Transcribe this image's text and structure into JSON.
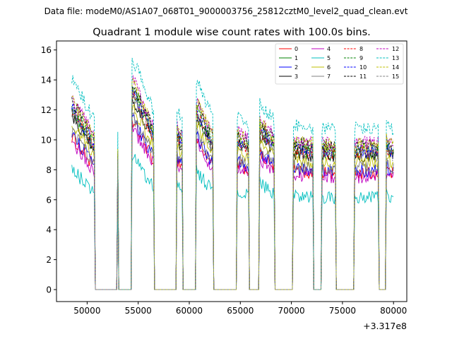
{
  "chart_data": {
    "type": "line",
    "suptitle": "Data file: modeM0/AS1A07_068T01_9000003756_25812cztM0_level2_quad_clean.evt",
    "title": "Quadrant 1 module wise count rates with 100.0s bins.",
    "xlabel": "",
    "ylabel": "",
    "x_offset_label": "+3.317e8",
    "xlim": [
      47000,
      81300
    ],
    "ylim": [
      -0.8,
      16.6
    ],
    "x_ticks": [
      50000,
      55000,
      60000,
      65000,
      70000,
      75000,
      80000
    ],
    "x_tick_labels": [
      "50000",
      "55000",
      "60000",
      "65000",
      "70000",
      "75000",
      "80000"
    ],
    "y_ticks": [
      0,
      2,
      4,
      6,
      8,
      10,
      12,
      14,
      16
    ],
    "y_tick_labels": [
      "0",
      "2",
      "4",
      "6",
      "8",
      "10",
      "12",
      "14",
      "16"
    ],
    "bin_size_s": 100,
    "segments": [
      {
        "start": 48500,
        "end": 50700,
        "level": 8.5,
        "decay": 0.25
      },
      {
        "start": 53000,
        "end": 53000,
        "level": 8.0,
        "decay": 0
      },
      {
        "start": 54400,
        "end": 56500,
        "level": 9.0,
        "decay": 0.3
      },
      {
        "start": 58800,
        "end": 59300,
        "level": 8.6,
        "decay": 0.05
      },
      {
        "start": 60700,
        "end": 62300,
        "level": 8.6,
        "decay": 0.22
      },
      {
        "start": 64700,
        "end": 65800,
        "level": 8.3,
        "decay": 0.05
      },
      {
        "start": 66900,
        "end": 68300,
        "level": 8.5,
        "decay": 0.1
      },
      {
        "start": 70200,
        "end": 72100,
        "level": 8.1,
        "decay": 0.02
      },
      {
        "start": 73000,
        "end": 74300,
        "level": 8.0,
        "decay": 0.02
      },
      {
        "start": 76200,
        "end": 78500,
        "level": 8.1,
        "decay": 0.0
      },
      {
        "start": 79300,
        "end": 80000,
        "level": 8.0,
        "decay": 0.05
      }
    ],
    "series": [
      {
        "name": "0",
        "color": "#ff0000",
        "dash": "solid",
        "scale": 0.96
      },
      {
        "name": "1",
        "color": "#008000",
        "dash": "solid",
        "scale": 1.12
      },
      {
        "name": "2",
        "color": "#0000ff",
        "dash": "solid",
        "scale": 0.98
      },
      {
        "name": "3",
        "color": "#000000",
        "dash": "solid",
        "scale": 1.1
      },
      {
        "name": "4",
        "color": "#bf00bf",
        "dash": "solid",
        "scale": 0.93
      },
      {
        "name": "5",
        "color": "#00bfbf",
        "dash": "solid",
        "scale": 0.76
      },
      {
        "name": "6",
        "color": "#bfbf00",
        "dash": "solid",
        "scale": 1.05
      },
      {
        "name": "7",
        "color": "#808080",
        "dash": "solid",
        "scale": 1.0
      },
      {
        "name": "8",
        "color": "#ff0000",
        "dash": "dashed",
        "scale": 1.13
      },
      {
        "name": "9",
        "color": "#008000",
        "dash": "dashed",
        "scale": 1.17
      },
      {
        "name": "10",
        "color": "#0000ff",
        "dash": "dashed",
        "scale": 1.14
      },
      {
        "name": "11",
        "color": "#000000",
        "dash": "dashed",
        "scale": 1.19
      },
      {
        "name": "12",
        "color": "#bf00bf",
        "dash": "dashed",
        "scale": 1.21
      },
      {
        "name": "13",
        "color": "#00bfbf",
        "dash": "dashed",
        "scale": 1.33
      },
      {
        "name": "14",
        "color": "#bfbf00",
        "dash": "dashed",
        "scale": 1.2
      },
      {
        "name": "15",
        "color": "#808080",
        "dash": "dashed",
        "scale": 1.11
      }
    ],
    "legend_position": "top-right",
    "legend_columns": 4
  }
}
